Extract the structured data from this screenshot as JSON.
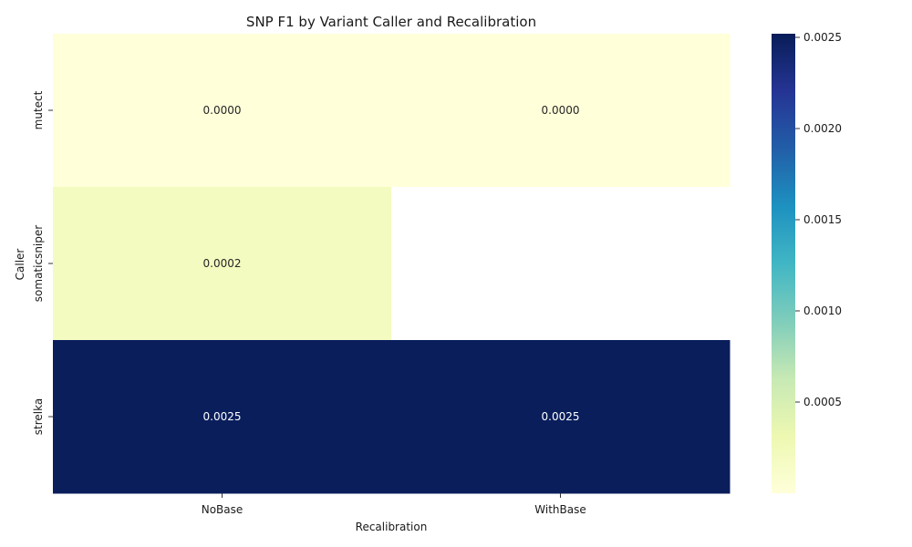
{
  "chart_data": {
    "type": "heatmap",
    "title": "SNP F1 by Variant Caller and Recalibration",
    "xlabel": "Recalibration",
    "ylabel": "Caller",
    "x_categories": [
      "NoBase",
      "WithBase"
    ],
    "y_categories": [
      "mutect",
      "somaticsniper",
      "strelka"
    ],
    "values": [
      [
        0.0,
        0.0
      ],
      [
        0.0002,
        null
      ],
      [
        0.0025,
        0.0025
      ]
    ],
    "cell_labels": [
      [
        "0.0000",
        "0.0000"
      ],
      [
        "0.0002",
        ""
      ],
      [
        "0.0025",
        "0.0025"
      ]
    ],
    "colormap": "YlGnBu",
    "colorbar": {
      "range": [
        0.0,
        0.00252
      ],
      "ticks": [
        0.0005,
        0.001,
        0.0015,
        0.002,
        0.0025
      ],
      "tick_labels": [
        "0.0005",
        "0.0010",
        "0.0015",
        "0.0020",
        "0.0025"
      ]
    },
    "missing_cell_color": "#ffffff",
    "grid": false
  }
}
